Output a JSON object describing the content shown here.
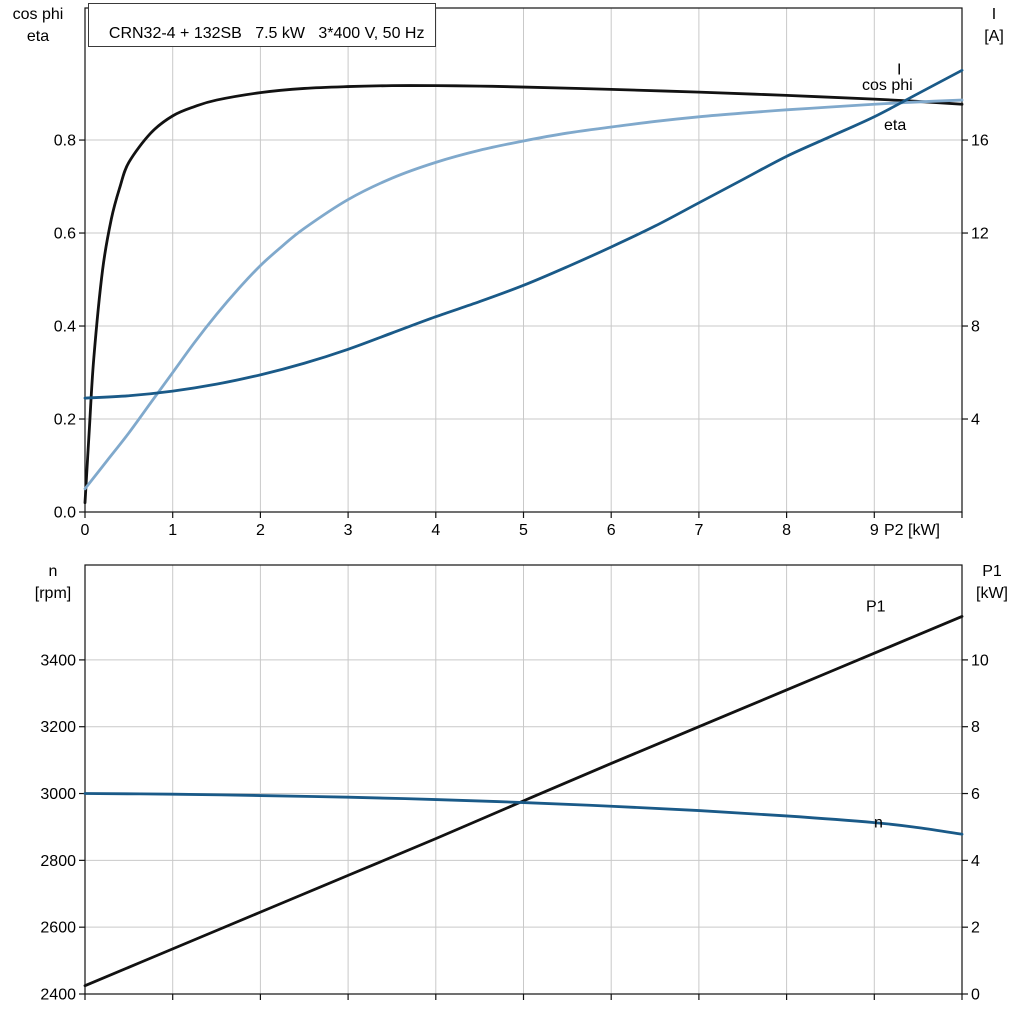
{
  "title_box": "CRN32-4 + 132SB   7.5 kW   3*400 V, 50 Hz",
  "corner_labels": {
    "top_left": [
      "cos phi",
      "eta"
    ],
    "top_right": [
      "I",
      "[A]"
    ],
    "bottom_left": [
      "n",
      "[rpm]"
    ],
    "bottom_right": [
      "P1",
      "[kW]"
    ]
  },
  "colors": {
    "black": "#121212",
    "dark_blue": "#1a5a88",
    "light_blue": "#80a9cc",
    "grid": "#c9c9c9"
  },
  "chart_data": [
    {
      "name": "efficiency-cosphi-current-chart",
      "type": "line",
      "title": "CRN32-4 + 132SB   7.5 kW   3*400 V, 50 Hz",
      "x_axis": {
        "label": "P2 [kW]",
        "min": 0,
        "max": 10,
        "ticks": [
          0,
          1,
          2,
          3,
          4,
          5,
          6,
          7,
          8,
          9,
          10
        ],
        "tick_labels": [
          "0",
          "1",
          "2",
          "3",
          "4",
          "5",
          "6",
          "7",
          "8",
          "9",
          ""
        ],
        "end_label": "P2 [kW]"
      },
      "y_left": {
        "label": "cos phi / eta",
        "min": 0,
        "max": 1.084,
        "ticks": [
          0,
          0.2,
          0.4,
          0.6,
          0.8
        ],
        "tick_labels": [
          "0.0",
          "0.2",
          "0.4",
          "0.6",
          "0.8"
        ]
      },
      "y_right": {
        "label": "I [A]",
        "min": 0,
        "max": 21.68,
        "ticks": [
          4,
          8,
          12,
          16
        ],
        "tick_labels": [
          "4",
          "8",
          "12",
          "16"
        ]
      },
      "series": [
        {
          "name": "eta",
          "axis": "left",
          "color": "black",
          "x": [
            0,
            0.05,
            0.1,
            0.2,
            0.3,
            0.4,
            0.5,
            0.75,
            1,
            1.25,
            1.5,
            2,
            2.5,
            3,
            3.5,
            4,
            4.5,
            5,
            6,
            7,
            8,
            9,
            9.5,
            10
          ],
          "y": [
            0.02,
            0.18,
            0.33,
            0.52,
            0.63,
            0.7,
            0.752,
            0.815,
            0.852,
            0.872,
            0.886,
            0.902,
            0.911,
            0.915,
            0.917,
            0.917,
            0.916,
            0.914,
            0.909,
            0.903,
            0.896,
            0.888,
            0.883,
            0.877
          ]
        },
        {
          "name": "cos phi",
          "axis": "left",
          "color": "light_blue",
          "x": [
            0,
            0.25,
            0.5,
            0.75,
            1,
            1.25,
            1.5,
            1.75,
            2,
            2.25,
            2.5,
            3,
            3.5,
            4,
            4.5,
            5,
            5.5,
            6,
            6.5,
            7,
            7.5,
            8,
            8.5,
            9,
            9.5,
            10
          ],
          "y": [
            0.05,
            0.11,
            0.17,
            0.235,
            0.3,
            0.365,
            0.425,
            0.48,
            0.53,
            0.572,
            0.61,
            0.672,
            0.718,
            0.752,
            0.778,
            0.798,
            0.815,
            0.828,
            0.84,
            0.85,
            0.858,
            0.865,
            0.871,
            0.877,
            0.882,
            0.886
          ]
        },
        {
          "name": "I",
          "axis": "right",
          "color": "dark_blue",
          "x": [
            0,
            0.5,
            1,
            1.5,
            2,
            2.5,
            3,
            3.5,
            4,
            4.5,
            5,
            5.5,
            6,
            6.5,
            7,
            7.5,
            8,
            8.5,
            9,
            9.5,
            10
          ],
          "y": [
            4.9,
            5.0,
            5.2,
            5.5,
            5.9,
            6.4,
            7.0,
            7.7,
            8.4,
            9.05,
            9.75,
            10.55,
            11.4,
            12.3,
            13.3,
            14.3,
            15.3,
            16.15,
            17.0,
            18.0,
            19.0
          ]
        }
      ]
    },
    {
      "name": "speed-inputpower-chart",
      "type": "line",
      "x_axis": {
        "label": "",
        "min": 0,
        "max": 10,
        "ticks": [
          0,
          1,
          2,
          3,
          4,
          5,
          6,
          7,
          8,
          9,
          10
        ]
      },
      "y_left": {
        "label": "n [rpm]",
        "min": 2400,
        "max": 3684,
        "ticks": [
          2400,
          2600,
          2800,
          3000,
          3200,
          3400
        ],
        "tick_labels": [
          "2400",
          "2600",
          "2800",
          "3000",
          "3200",
          "3400"
        ]
      },
      "y_right": {
        "label": "P1 [kW]",
        "min": 0,
        "max": 12.84,
        "ticks": [
          0,
          2,
          4,
          6,
          8,
          10
        ],
        "tick_labels": [
          "0",
          "2",
          "4",
          "6",
          "8",
          "10"
        ]
      },
      "series": [
        {
          "name": "P1",
          "axis": "right",
          "color": "black",
          "x": [
            0,
            1,
            2,
            3,
            4,
            5,
            6,
            7,
            8,
            9,
            10
          ],
          "y": [
            0.25,
            1.35,
            2.45,
            3.55,
            4.65,
            5.78,
            6.9,
            8.0,
            9.1,
            10.2,
            11.3
          ]
        },
        {
          "name": "n",
          "axis": "left",
          "color": "dark_blue",
          "x": [
            0,
            1,
            2,
            3,
            4,
            5,
            6,
            7,
            8,
            9,
            9.5,
            10
          ],
          "y": [
            3000,
            2998,
            2994,
            2989,
            2982,
            2973,
            2962,
            2949,
            2933,
            2913,
            2898,
            2878
          ]
        }
      ]
    }
  ]
}
